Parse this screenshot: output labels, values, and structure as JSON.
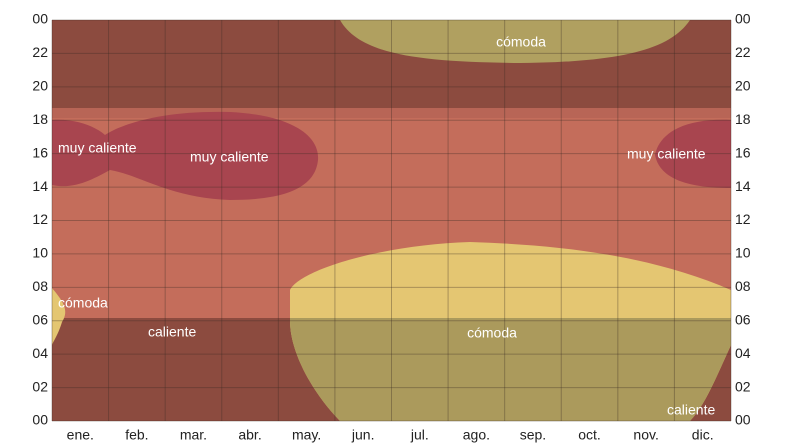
{
  "chart_data": {
    "type": "contour",
    "categories": [
      "ene.",
      "feb.",
      "mar.",
      "abr.",
      "may.",
      "jun.",
      "jul.",
      "ago.",
      "sep.",
      "oct.",
      "nov.",
      "dic."
    ],
    "ylim": [
      0,
      24
    ],
    "yticks": [
      {
        "value": 0,
        "label": "00"
      },
      {
        "value": 2,
        "label": "02"
      },
      {
        "value": 4,
        "label": "04"
      },
      {
        "value": 6,
        "label": "06"
      },
      {
        "value": 8,
        "label": "08"
      },
      {
        "value": 10,
        "label": "10"
      },
      12,
      14,
      16,
      18,
      20,
      22,
      {
        "value": 24,
        "label": "00"
      }
    ],
    "grid": true,
    "annotations": [
      "muy caliente",
      "muy caliente",
      "muy caliente",
      "cómoda",
      "cómoda",
      "caliente",
      "cómoda",
      "caliente"
    ]
  }
}
